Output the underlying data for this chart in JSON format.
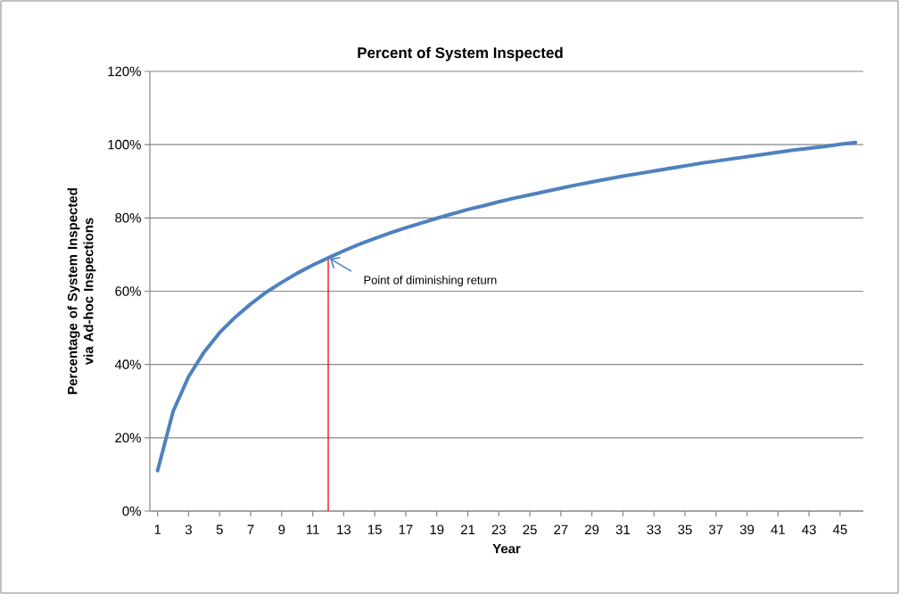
{
  "chart_data": {
    "type": "line",
    "title": "Percent of System Inspected",
    "xlabel": "Year",
    "ylabel": "Percentage of System Inspected via Ad-hoc Inspections",
    "x": [
      1,
      2,
      3,
      4,
      5,
      6,
      7,
      8,
      9,
      10,
      11,
      12,
      13,
      14,
      15,
      16,
      17,
      18,
      19,
      20,
      21,
      22,
      23,
      24,
      25,
      26,
      27,
      28,
      29,
      30,
      31,
      32,
      33,
      34,
      35,
      36,
      37,
      38,
      39,
      40,
      41,
      42,
      43,
      44,
      45,
      46
    ],
    "series": [
      {
        "color": "#4f81bd",
        "values": [
          11.0,
          27.2,
          36.7,
          43.4,
          48.7,
          52.9,
          56.5,
          59.7,
          62.4,
          64.9,
          67.1,
          69.1,
          71.0,
          72.8,
          74.4,
          75.9,
          77.3,
          78.6,
          79.9,
          81.1,
          82.3,
          83.3,
          84.4,
          85.4,
          86.3,
          87.2,
          88.1,
          89.0,
          89.8,
          90.6,
          91.4,
          92.1,
          92.8,
          93.5,
          94.2,
          94.9,
          95.5,
          96.1,
          96.7,
          97.3,
          97.9,
          98.5,
          99.0,
          99.5,
          100.1,
          100.6
        ]
      }
    ],
    "xlim": [
      0.5,
      46.5
    ],
    "xticks": [
      1,
      3,
      5,
      7,
      9,
      11,
      13,
      15,
      17,
      19,
      21,
      23,
      25,
      27,
      29,
      31,
      33,
      35,
      37,
      39,
      41,
      43,
      45
    ],
    "ylim": [
      0,
      120
    ],
    "yticks": [
      {
        "value": 0,
        "label": "0%"
      },
      {
        "value": 20,
        "label": "20%"
      },
      {
        "value": 40,
        "label": "40%"
      },
      {
        "value": 60,
        "label": "60%"
      },
      {
        "value": 80,
        "label": "80%"
      },
      {
        "value": 100,
        "label": "100%"
      },
      {
        "value": 120,
        "label": "120%"
      }
    ],
    "grid": "y",
    "marker": "none",
    "line_style": "solid",
    "ref_lines": [
      {
        "axis": "x",
        "value": 12,
        "color": "#ff0000"
      }
    ],
    "annotations": [
      {
        "text": "Point of diminishing return",
        "x": 12,
        "y": 69.1
      }
    ]
  }
}
